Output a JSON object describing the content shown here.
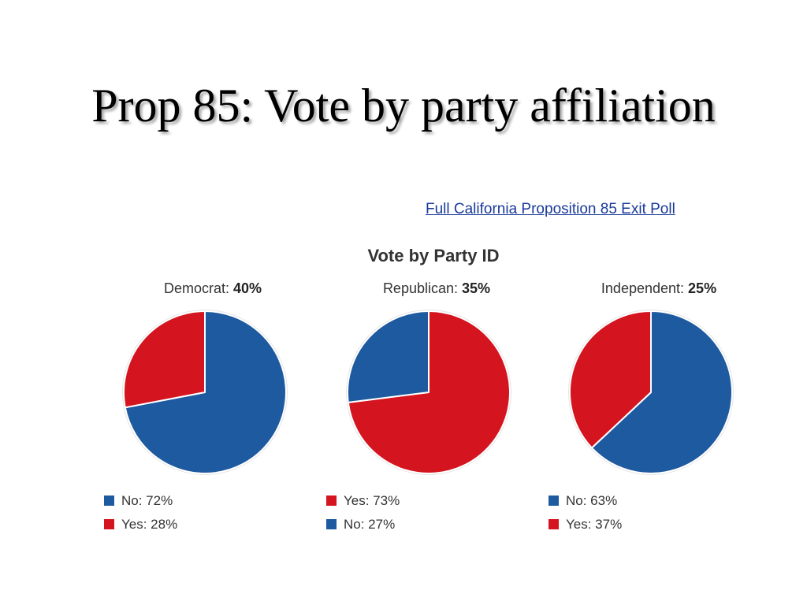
{
  "slide": {
    "title": "Prop 85: Vote by party affiliation"
  },
  "source_link": {
    "label": "Full California Proposition 85 Exit Poll"
  },
  "colors": {
    "no": "#1e5aa0",
    "yes": "#d4141e"
  },
  "chart_data": {
    "type": "pie",
    "title": "Vote by Party ID",
    "charts": [
      {
        "group": "Democrat:",
        "share": "40%",
        "slices": [
          {
            "label": "No",
            "value": 72,
            "color": "#1e5aa0",
            "legend": "No: 72%"
          },
          {
            "label": "Yes",
            "value": 28,
            "color": "#d4141e",
            "legend": "Yes: 28%"
          }
        ]
      },
      {
        "group": "Republican:",
        "share": "35%",
        "slices": [
          {
            "label": "Yes",
            "value": 73,
            "color": "#d4141e",
            "legend": "Yes: 73%"
          },
          {
            "label": "No",
            "value": 27,
            "color": "#1e5aa0",
            "legend": "No: 27%"
          }
        ]
      },
      {
        "group": "Independent:",
        "share": "25%",
        "slices": [
          {
            "label": "No",
            "value": 63,
            "color": "#1e5aa0",
            "legend": "No: 63%"
          },
          {
            "label": "Yes",
            "value": 37,
            "color": "#d4141e",
            "legend": "Yes: 37%"
          }
        ]
      }
    ]
  }
}
